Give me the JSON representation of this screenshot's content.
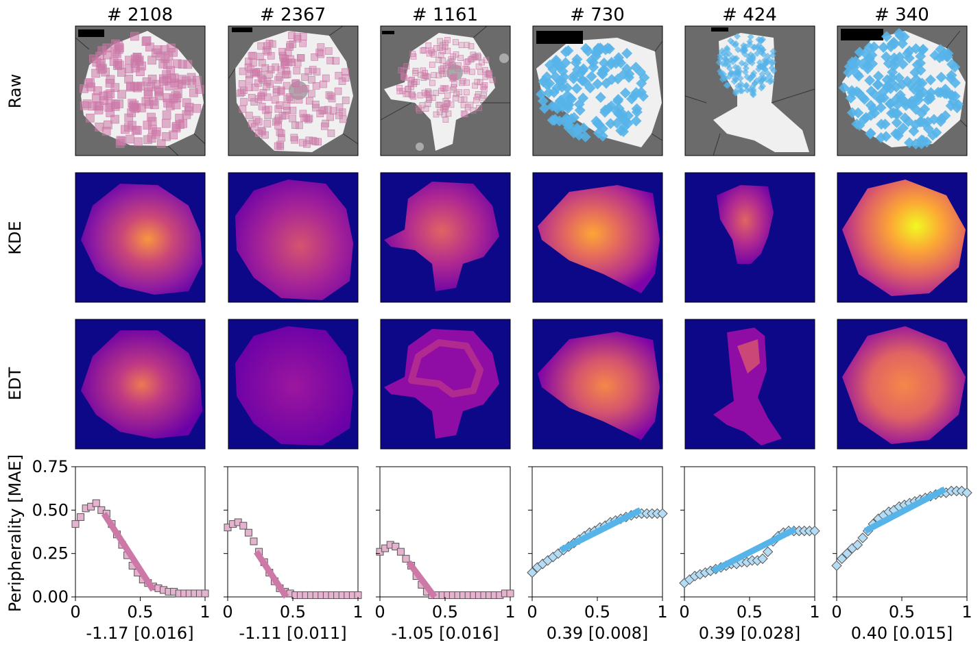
{
  "columns": [
    {
      "title": "# 2108",
      "label": "-1.17 [0.016]",
      "group": "pink"
    },
    {
      "title": "# 2367",
      "label": "-1.11 [0.011]",
      "group": "pink"
    },
    {
      "title": "# 1161",
      "label": "-1.05 [0.016]",
      "group": "pink"
    },
    {
      "title": "# 730",
      "label": "0.39 [0.008]",
      "group": "blue"
    },
    {
      "title": "# 424",
      "label": "0.39 [0.028]",
      "group": "blue"
    },
    {
      "title": "# 340",
      "label": "0.40 [0.015]",
      "group": "blue"
    }
  ],
  "rows": [
    {
      "label": "Raw"
    },
    {
      "label": "KDE"
    },
    {
      "label": "EDT"
    }
  ],
  "colors": {
    "pink": "#cc79a7",
    "pink_marker_fill": "#e6b3cf",
    "blue": "#56b4e9",
    "blue_marker_fill": "#b4dcf4",
    "raw_bg": "#6b6b6b",
    "tissue": "#f0f0f0",
    "kde_low": "#0d0887",
    "kde_high": "#f0f921"
  },
  "chart_data": {
    "type": "scatter",
    "ylabel": "Peripherality [MAE]",
    "xlim": [
      0,
      1
    ],
    "ylim": [
      0,
      0.75
    ],
    "xticks": [
      "0",
      "0.5",
      "1"
    ],
    "yticks": [
      "0.00",
      "0.25",
      "0.50",
      "0.75"
    ],
    "panels": [
      {
        "title": "# 2108",
        "marker": "square",
        "label": "-1.17 [0.016]",
        "x": [
          0.0,
          0.04,
          0.08,
          0.12,
          0.16,
          0.2,
          0.24,
          0.28,
          0.32,
          0.36,
          0.4,
          0.44,
          0.48,
          0.52,
          0.56,
          0.6,
          0.64,
          0.68,
          0.72,
          0.76,
          0.8,
          0.84,
          0.88,
          0.92,
          0.96,
          1.0
        ],
        "y": [
          0.42,
          0.46,
          0.51,
          0.52,
          0.54,
          0.5,
          0.48,
          0.42,
          0.36,
          0.3,
          0.24,
          0.18,
          0.14,
          0.1,
          0.08,
          0.06,
          0.05,
          0.04,
          0.03,
          0.03,
          0.02,
          0.02,
          0.02,
          0.02,
          0.02,
          0.02
        ],
        "fit": {
          "x": [
            0.22,
            0.6
          ],
          "y": [
            0.48,
            0.04
          ]
        }
      },
      {
        "title": "# 2367",
        "marker": "square",
        "label": "-1.11 [0.011]",
        "x": [
          0.0,
          0.04,
          0.08,
          0.12,
          0.16,
          0.2,
          0.24,
          0.28,
          0.32,
          0.36,
          0.4,
          0.44,
          0.48,
          0.52,
          0.56,
          0.6,
          0.64,
          0.68,
          0.72,
          0.76,
          0.8,
          0.84,
          0.88,
          0.92,
          0.96,
          1.0
        ],
        "y": [
          0.4,
          0.42,
          0.43,
          0.41,
          0.37,
          0.32,
          0.26,
          0.2,
          0.14,
          0.09,
          0.05,
          0.03,
          0.02,
          0.01,
          0.01,
          0.01,
          0.01,
          0.01,
          0.01,
          0.01,
          0.01,
          0.01,
          0.01,
          0.01,
          0.01,
          0.01
        ],
        "fit": {
          "x": [
            0.22,
            0.45
          ],
          "y": [
            0.26,
            0.0
          ]
        }
      },
      {
        "title": "# 1161",
        "marker": "square",
        "label": "-1.05 [0.016]",
        "x": [
          0.0,
          0.04,
          0.08,
          0.12,
          0.16,
          0.2,
          0.24,
          0.28,
          0.32,
          0.36,
          0.4,
          0.44,
          0.48,
          0.52,
          0.56,
          0.6,
          0.64,
          0.68,
          0.72,
          0.76,
          0.8,
          0.84,
          0.88,
          0.92,
          0.96,
          1.0
        ],
        "y": [
          0.26,
          0.28,
          0.3,
          0.29,
          0.26,
          0.22,
          0.18,
          0.12,
          0.07,
          0.03,
          0.01,
          0.01,
          0.01,
          0.01,
          0.01,
          0.01,
          0.01,
          0.01,
          0.01,
          0.01,
          0.01,
          0.01,
          0.01,
          0.01,
          0.02,
          0.02
        ],
        "fit": {
          "x": [
            0.22,
            0.42
          ],
          "y": [
            0.2,
            0.0
          ]
        }
      },
      {
        "title": "# 730",
        "marker": "diamond",
        "label": "0.39 [0.008]",
        "x": [
          0.0,
          0.04,
          0.08,
          0.12,
          0.16,
          0.2,
          0.24,
          0.28,
          0.32,
          0.36,
          0.4,
          0.44,
          0.48,
          0.52,
          0.56,
          0.6,
          0.64,
          0.68,
          0.72,
          0.76,
          0.8,
          0.84,
          0.88,
          0.92,
          0.96,
          1.0
        ],
        "y": [
          0.14,
          0.17,
          0.19,
          0.21,
          0.23,
          0.25,
          0.27,
          0.29,
          0.31,
          0.33,
          0.35,
          0.37,
          0.38,
          0.4,
          0.41,
          0.43,
          0.44,
          0.45,
          0.46,
          0.47,
          0.48,
          0.48,
          0.48,
          0.48,
          0.48,
          0.48
        ],
        "fit": {
          "x": [
            0.22,
            0.83
          ],
          "y": [
            0.27,
            0.5
          ]
        }
      },
      {
        "title": "# 424",
        "marker": "diamond",
        "label": "0.39 [0.028]",
        "x": [
          0.0,
          0.04,
          0.08,
          0.12,
          0.16,
          0.2,
          0.24,
          0.28,
          0.32,
          0.36,
          0.4,
          0.44,
          0.48,
          0.52,
          0.56,
          0.6,
          0.64,
          0.68,
          0.72,
          0.76,
          0.8,
          0.84,
          0.88,
          0.92,
          0.96,
          1.0
        ],
        "y": [
          0.08,
          0.1,
          0.12,
          0.13,
          0.14,
          0.15,
          0.16,
          0.17,
          0.18,
          0.19,
          0.19,
          0.2,
          0.2,
          0.21,
          0.21,
          0.22,
          0.26,
          0.32,
          0.35,
          0.37,
          0.38,
          0.38,
          0.38,
          0.38,
          0.38,
          0.38
        ],
        "fit": {
          "x": [
            0.22,
            0.85
          ],
          "y": [
            0.15,
            0.39
          ]
        }
      },
      {
        "title": "# 340",
        "marker": "diamond",
        "label": "0.40 [0.015]",
        "x": [
          0.0,
          0.04,
          0.08,
          0.12,
          0.16,
          0.2,
          0.24,
          0.28,
          0.32,
          0.36,
          0.4,
          0.44,
          0.48,
          0.52,
          0.56,
          0.6,
          0.64,
          0.68,
          0.72,
          0.76,
          0.8,
          0.84,
          0.88,
          0.92,
          0.96,
          1.0
        ],
        "y": [
          0.18,
          0.22,
          0.25,
          0.28,
          0.3,
          0.34,
          0.38,
          0.42,
          0.45,
          0.47,
          0.49,
          0.5,
          0.52,
          0.53,
          0.54,
          0.55,
          0.56,
          0.57,
          0.58,
          0.59,
          0.6,
          0.6,
          0.61,
          0.61,
          0.61,
          0.6
        ],
        "fit": {
          "x": [
            0.22,
            0.83
          ],
          "y": [
            0.38,
            0.62
          ]
        }
      }
    ]
  }
}
